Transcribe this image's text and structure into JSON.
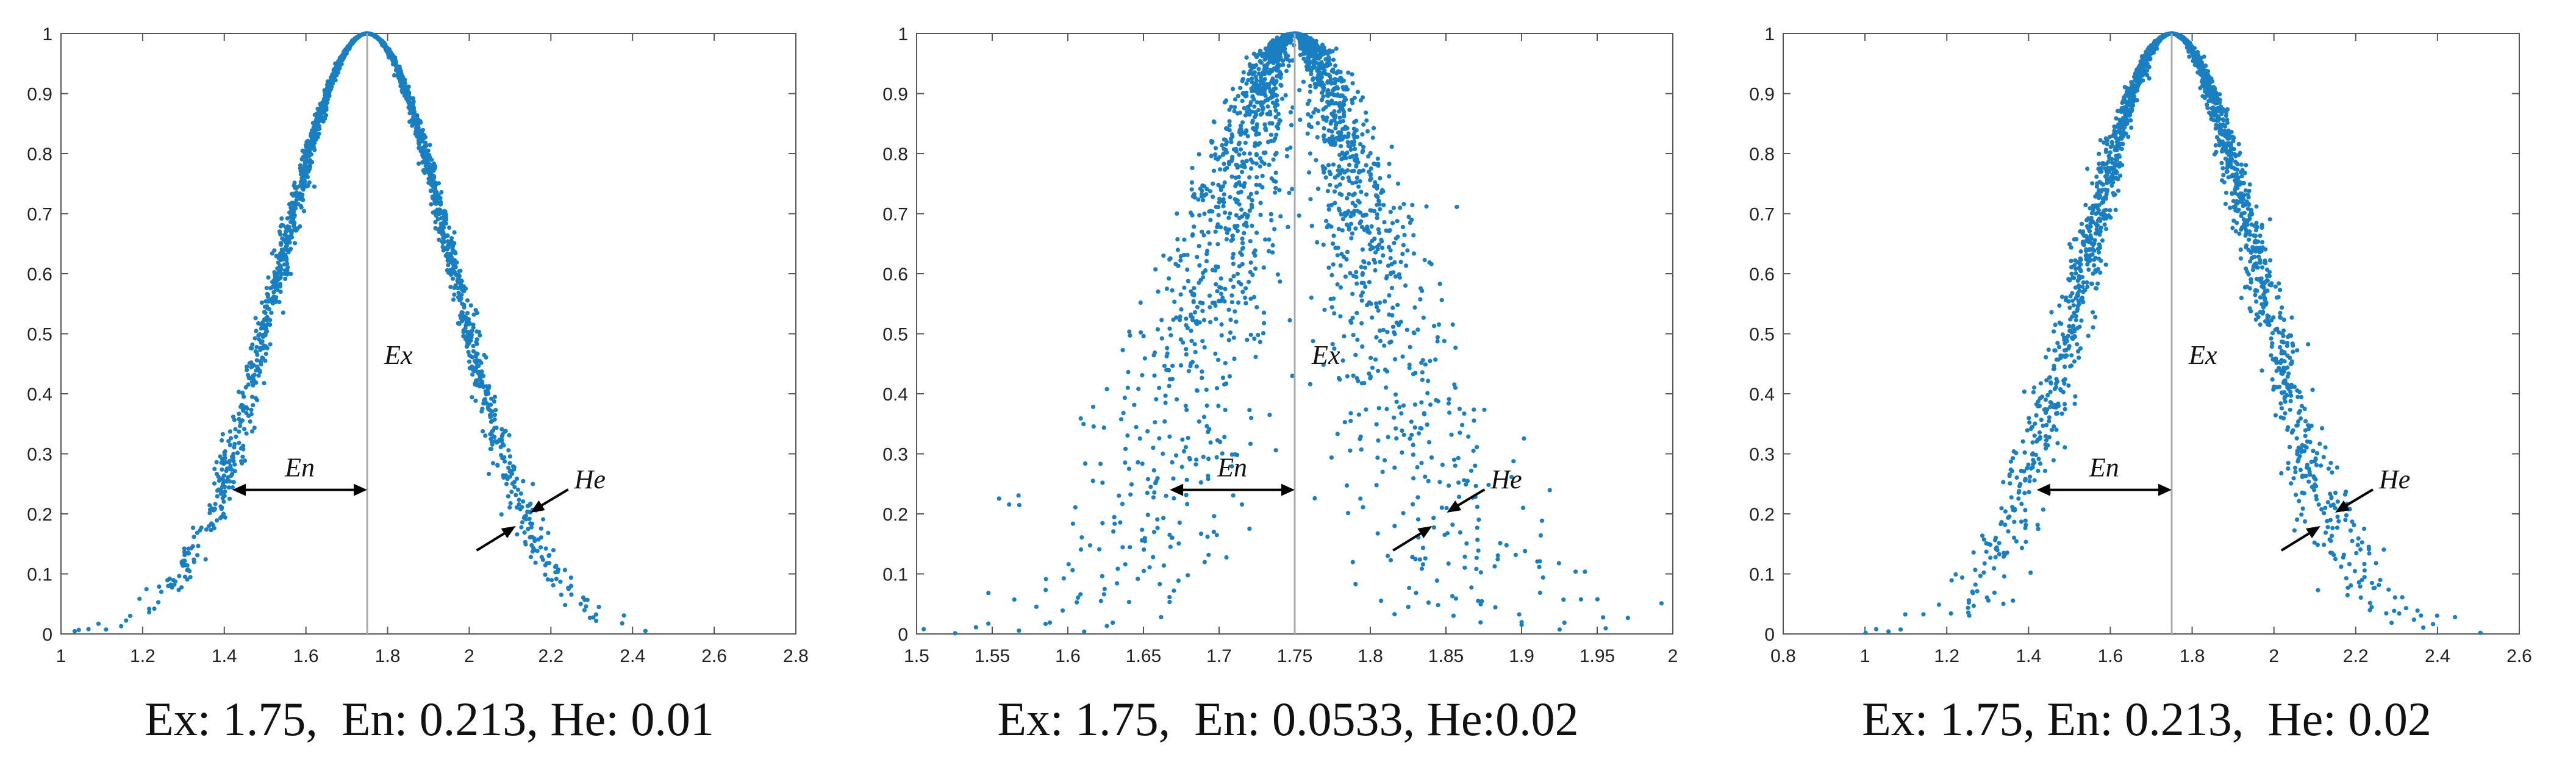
{
  "chart_data": [
    {
      "type": "scatter",
      "title": "",
      "xlabel": "",
      "ylabel": "",
      "xlim": [
        1,
        2.8
      ],
      "ylim": [
        0,
        1
      ],
      "x_ticks": [
        "1",
        "1.2",
        "1.4",
        "1.6",
        "1.8",
        "2",
        "2.2",
        "2.4",
        "2.6",
        "2.8"
      ],
      "y_ticks": [
        "0",
        "0.1",
        "0.2",
        "0.3",
        "0.4",
        "0.5",
        "0.6",
        "0.7",
        "0.8",
        "0.9",
        "1"
      ],
      "parameters": {
        "Ex": 1.75,
        "En": 0.213,
        "He": 0.01
      },
      "annotations": {
        "ex": "Ex",
        "en": "En",
        "he": "He"
      },
      "caption": "Ex: 1.75,  En: 0.213, He: 0.01",
      "grid": false,
      "point_color": "#1a7fc1"
    },
    {
      "type": "scatter",
      "title": "",
      "xlabel": "",
      "ylabel": "",
      "xlim": [
        1.5,
        2
      ],
      "ylim": [
        0,
        1
      ],
      "x_ticks": [
        "1.5",
        "1.55",
        "1.6",
        "1.65",
        "1.7",
        "1.75",
        "1.8",
        "1.85",
        "1.9",
        "1.95",
        "2"
      ],
      "y_ticks": [
        "0",
        "0.1",
        "0.2",
        "0.3",
        "0.4",
        "0.5",
        "0.6",
        "0.7",
        "0.8",
        "0.9",
        "1"
      ],
      "parameters": {
        "Ex": 1.75,
        "En": 0.0533,
        "He": 0.02
      },
      "annotations": {
        "ex": "Ex",
        "en": "En",
        "he": "He"
      },
      "caption": "Ex: 1.75,  En: 0.0533, He:0.02",
      "grid": false,
      "point_color": "#1a7fc1"
    },
    {
      "type": "scatter",
      "title": "",
      "xlabel": "",
      "ylabel": "",
      "xlim": [
        0.8,
        2.6
      ],
      "ylim": [
        0,
        1
      ],
      "x_ticks": [
        "0.8",
        "1",
        "1.2",
        "1.4",
        "1.6",
        "1.8",
        "2",
        "2.2",
        "2.4",
        "2.6"
      ],
      "y_ticks": [
        "0",
        "0.1",
        "0.2",
        "0.3",
        "0.4",
        "0.5",
        "0.6",
        "0.7",
        "0.8",
        "0.9",
        "1"
      ],
      "parameters": {
        "Ex": 1.75,
        "En": 0.213,
        "He": 0.02
      },
      "annotations": {
        "ex": "Ex",
        "en": "En",
        "he": "He"
      },
      "caption": "Ex: 1.75, En: 0.213,  He: 0.02",
      "grid": false,
      "point_color": "#1a7fc1"
    }
  ]
}
